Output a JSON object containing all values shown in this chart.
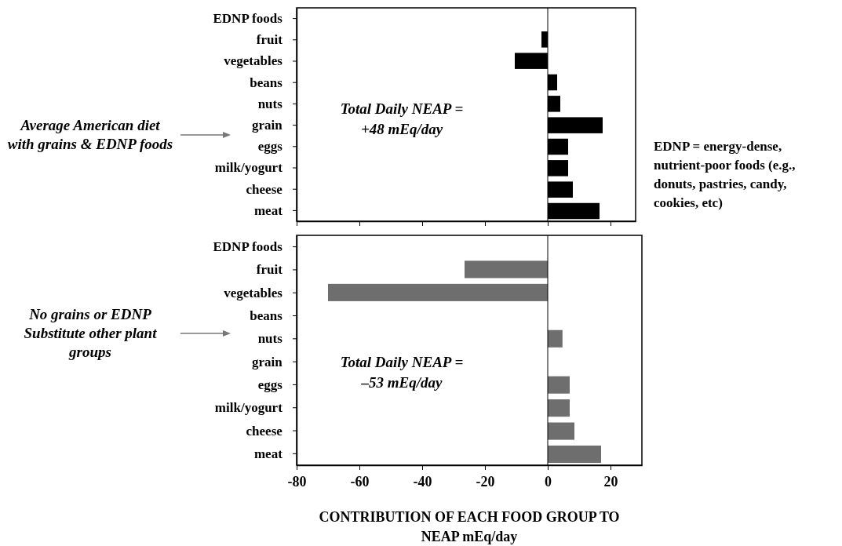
{
  "chart_data": [
    {
      "type": "bar",
      "orientation": "horizontal",
      "tick_labels": "y",
      "categories": [
        "EDNP foods",
        "fruit",
        "vegetables",
        "beans",
        "nuts",
        "grain",
        "eggs",
        "milk/yogurt",
        "cheese",
        "meat"
      ],
      "series": [
        {
          "color": "#000000",
          "values": [
            null,
            -2,
            -10.5,
            3,
            4,
            17.5,
            6.5,
            6.5,
            8,
            16.5
          ]
        }
      ],
      "xlim": [
        -80,
        28
      ],
      "xticks": [
        -80,
        -60,
        -40,
        -20,
        0,
        20
      ],
      "annotations": [
        "Average American diet with grains & EDNP foods",
        "Total Daily NEAP = +48 mEq/day",
        "EDNP = energy-dense, nutrient-poor foods (e.g., donuts, pastries, candy, cookies, etc)"
      ]
    },
    {
      "type": "bar",
      "orientation": "horizontal",
      "categories": [
        "EDNP foods",
        "fruit",
        "vegetables",
        "beans",
        "nuts",
        "grain",
        "eggs",
        "milk/yogurt",
        "cheese",
        "meat"
      ],
      "series": [
        {
          "color": "#6e6e6e",
          "values": [
            null,
            -26.5,
            -70,
            null,
            4.7,
            null,
            7,
            7,
            8.5,
            17
          ]
        }
      ],
      "xlim": [
        -80,
        30
      ],
      "xticks": [
        -80,
        -60,
        -40,
        -20,
        0,
        20
      ],
      "xlabel": "CONTRIBUTION OF EACH FOOD GROUP TO NEAP mEq/day",
      "annotations": [
        "No grains or EDNP Substitute other plant groups",
        "Total Daily NEAP = –53 mEq/day"
      ]
    }
  ]
}
